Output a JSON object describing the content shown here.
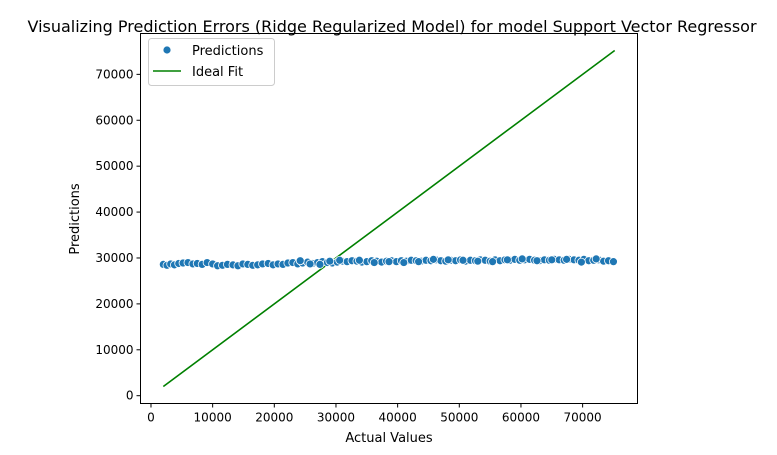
{
  "chart_data": {
    "type": "scatter",
    "title": "Visualizing Prediction Errors (Ridge Regularized Model) for model Support Vector Regressor",
    "xlabel": "Actual Values",
    "ylabel": "Predictions",
    "xlim": [
      -1700,
      78900
    ],
    "ylim": [
      -1700,
      78900
    ],
    "xticks": [
      0,
      10000,
      20000,
      30000,
      40000,
      50000,
      60000,
      70000
    ],
    "yticks": [
      0,
      10000,
      20000,
      30000,
      40000,
      50000,
      60000,
      70000
    ],
    "tick_labels": {
      "x": [
        "0",
        "10000",
        "20000",
        "30000",
        "40000",
        "50000",
        "60000",
        "70000"
      ],
      "y": [
        "0",
        "10000",
        "20000",
        "30000",
        "40000",
        "50000",
        "60000",
        "70000"
      ]
    },
    "grid": false,
    "legend": {
      "placement": "upper-left",
      "entries": [
        {
          "label": "Predictions",
          "marker": "circle",
          "color": "#1f77b4"
        },
        {
          "label": "Ideal Fit",
          "marker": "line",
          "color": "#008000"
        }
      ]
    },
    "series": [
      {
        "name": "Predictions",
        "kind": "scatter",
        "color": "#1f77b4",
        "x": [
          2000,
          2600,
          3200,
          3800,
          4500,
          5200,
          6000,
          6800,
          7500,
          8300,
          9100,
          10000,
          10800,
          11600,
          12400,
          13300,
          14100,
          14900,
          15700,
          16500,
          17300,
          18100,
          19000,
          19800,
          20600,
          21400,
          22200,
          23000,
          23800,
          24600,
          25400,
          26200,
          27000,
          27800,
          28600,
          29400,
          30200,
          31000,
          31800,
          32600,
          33400,
          34200,
          35000,
          35800,
          36600,
          37400,
          38200,
          39000,
          39800,
          40600,
          41400,
          42200,
          43000,
          43800,
          44600,
          45400,
          46200,
          47000,
          47800,
          48600,
          49400,
          50200,
          51000,
          51800,
          52600,
          53400,
          54200,
          55000,
          55800,
          56600,
          57400,
          58200,
          59000,
          59800,
          60600,
          61400,
          62200,
          63000,
          63800,
          64600,
          65400,
          66200,
          67000,
          67800,
          68600,
          69400,
          70200,
          71000,
          71800,
          72600,
          73400,
          74200,
          75000,
          24200,
          25800,
          27400,
          29000,
          30600,
          33800,
          36200,
          38600,
          41000,
          43400,
          45800,
          48200,
          50600,
          53000,
          55400,
          57800,
          60200,
          62600,
          65000,
          67400,
          69800,
          72200
        ],
        "y": [
          28600,
          28400,
          28700,
          28500,
          28800,
          28900,
          29000,
          28700,
          28800,
          28600,
          29000,
          28700,
          28300,
          28400,
          28600,
          28500,
          28300,
          28700,
          28600,
          28400,
          28500,
          28700,
          28800,
          28500,
          28700,
          28600,
          28900,
          29000,
          28700,
          28900,
          29100,
          28800,
          29000,
          29200,
          29000,
          28900,
          29100,
          29300,
          29200,
          29400,
          29300,
          29100,
          29200,
          29400,
          29300,
          29100,
          29300,
          29400,
          29200,
          29400,
          29300,
          29500,
          29400,
          29300,
          29500,
          29400,
          29600,
          29400,
          29300,
          29500,
          29400,
          29600,
          29300,
          29500,
          29400,
          29600,
          29500,
          29300,
          29600,
          29400,
          29600,
          29500,
          29700,
          29500,
          29600,
          29700,
          29500,
          29400,
          29600,
          29500,
          29700,
          29600,
          29500,
          29700,
          29600,
          29500,
          29700,
          29400,
          29500,
          29600,
          29300,
          29400,
          29200,
          29400,
          28700,
          28600,
          29300,
          29500,
          29500,
          29000,
          29200,
          29000,
          29200,
          29700,
          29600,
          29500,
          29300,
          29200,
          29600,
          29800,
          29400,
          29600,
          29700,
          29100,
          29800
        ]
      },
      {
        "name": "Ideal Fit",
        "kind": "line",
        "color": "#008000",
        "x": [
          2000,
          75200
        ],
        "y": [
          2000,
          75200
        ]
      }
    ]
  }
}
